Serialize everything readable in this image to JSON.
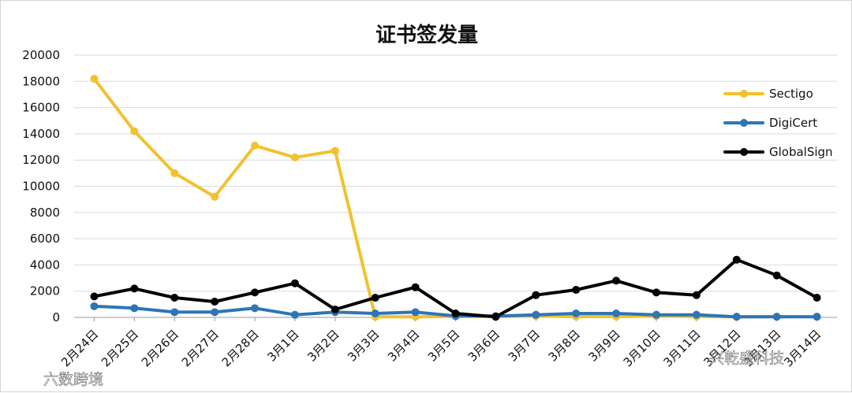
{
  "chart_data": {
    "type": "line",
    "title": "证书签发量",
    "categories": [
      "2月24日",
      "2月25日",
      "2月26日",
      "2月27日",
      "2月28日",
      "3月1日",
      "3月2日",
      "3月3日",
      "3月4日",
      "3月5日",
      "3月6日",
      "3月7日",
      "3月8日",
      "3月9日",
      "3月10日",
      "3月11日",
      "3月12日",
      "3月13日",
      "3月14日"
    ],
    "series": [
      {
        "name": "Sectigo",
        "color": "#F2C12E",
        "values": [
          18200,
          14200,
          11000,
          9200,
          13100,
          12200,
          12700,
          50,
          50,
          80,
          60,
          100,
          60,
          60,
          100,
          60,
          50,
          60,
          60
        ]
      },
      {
        "name": "DigiCert",
        "color": "#2E75B6",
        "values": [
          850,
          700,
          400,
          400,
          700,
          200,
          400,
          300,
          400,
          100,
          100,
          200,
          300,
          300,
          200,
          200,
          50,
          50,
          50
        ]
      },
      {
        "name": "GlobalSign",
        "color": "#000000",
        "values": [
          1600,
          2200,
          1500,
          1200,
          1900,
          2600,
          600,
          1500,
          2300,
          300,
          50,
          1700,
          2100,
          2800,
          1900,
          1700,
          4400,
          3200,
          1500
        ]
      }
    ],
    "y_ticks": [
      "0",
      "2000",
      "4000",
      "6000",
      "8000",
      "10000",
      "12000",
      "14000",
      "16000",
      "18000",
      "20000"
    ],
    "ylim": [
      0,
      20000
    ],
    "grid": true,
    "legend_position": "right"
  },
  "watermarks": {
    "left": "六数跨境",
    "right": "兴乾盛科技"
  }
}
